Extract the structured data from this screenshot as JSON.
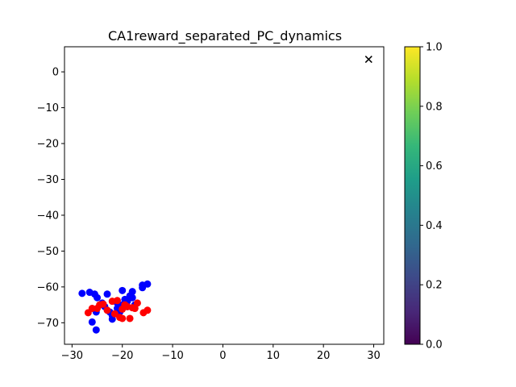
{
  "chart_data": [
    {
      "type": "scatter",
      "title": "CA1reward_separated_PC_dynamics",
      "xlabel": "",
      "ylabel": "",
      "xlim": [
        -31.5,
        32
      ],
      "ylim": [
        -76,
        7
      ],
      "x_ticks": [
        -30,
        -20,
        -10,
        0,
        10,
        20,
        30
      ],
      "x_tick_labels": [
        "−30",
        "−20",
        "−10",
        "0",
        "10",
        "20",
        "30"
      ],
      "y_ticks": [
        0,
        -10,
        -20,
        -30,
        -40,
        -50,
        -60,
        -70
      ],
      "y_tick_labels": [
        "0",
        "−10",
        "−20",
        "−30",
        "−40",
        "−50",
        "−60",
        "−70"
      ],
      "grid": false,
      "series": [
        {
          "color": "#0000ff",
          "marker": "circle",
          "points": [
            [
              -28,
              -61.8
            ],
            [
              -26.5,
              -61.5
            ],
            [
              -26,
              -69.8
            ],
            [
              -25.2,
              -72
            ],
            [
              -25.5,
              -62
            ],
            [
              -25,
              -63
            ],
            [
              -25.2,
              -67
            ],
            [
              -24,
              -64.5
            ],
            [
              -23.5,
              -65.5
            ],
            [
              -23,
              -62
            ],
            [
              -22.5,
              -67
            ],
            [
              -22,
              -68
            ],
            [
              -22,
              -69
            ],
            [
              -21.5,
              -67.5
            ],
            [
              -21,
              -66
            ],
            [
              -21,
              -64.5
            ],
            [
              -20.5,
              -67
            ],
            [
              -20.5,
              -66
            ],
            [
              -20,
              -65
            ],
            [
              -20,
              -61
            ],
            [
              -19.5,
              -63.5
            ],
            [
              -19,
              -65.5
            ],
            [
              -19,
              -64
            ],
            [
              -18.5,
              -62.5
            ],
            [
              -18,
              -63
            ],
            [
              -18,
              -61.3
            ],
            [
              -17.5,
              -65
            ],
            [
              -16,
              -60.2
            ],
            [
              -16,
              -59.5
            ],
            [
              -15,
              -59.2
            ]
          ]
        },
        {
          "color": "#ff0000",
          "marker": "circle",
          "points": [
            [
              -26.8,
              -67.2
            ],
            [
              -26,
              -66
            ],
            [
              -25,
              -66
            ],
            [
              -24.5,
              -65
            ],
            [
              -23.8,
              -64.8
            ],
            [
              -23,
              -66.5
            ],
            [
              -22,
              -64
            ],
            [
              -21.5,
              -67.5
            ],
            [
              -21,
              -63.8
            ],
            [
              -20.5,
              -68.5
            ],
            [
              -20,
              -68.8
            ],
            [
              -20,
              -66.2
            ],
            [
              -19.5,
              -65
            ],
            [
              -19,
              -65.5
            ],
            [
              -18.5,
              -68.8
            ],
            [
              -18,
              -65.8
            ],
            [
              -17.5,
              -66
            ],
            [
              -17,
              -64.5
            ],
            [
              -15.8,
              -67.2
            ],
            [
              -15,
              -66.5
            ]
          ]
        },
        {
          "color": "#000000",
          "marker": "x",
          "points": [
            [
              29,
              3.5
            ]
          ]
        }
      ]
    },
    {
      "type": "heatmap",
      "colormap": "viridis",
      "colors": [
        "#440154",
        "#482878",
        "#3e4989",
        "#31688e",
        "#26828e",
        "#1f9e89",
        "#35b779",
        "#6ece58",
        "#b5de2b",
        "#fde725"
      ],
      "range": [
        0.0,
        1.0
      ],
      "ticks": [
        0.0,
        0.2,
        0.4,
        0.6,
        0.8,
        1.0
      ],
      "tick_labels": [
        "0.0",
        "0.2",
        "0.4",
        "0.6",
        "0.8",
        "1.0"
      ]
    }
  ]
}
